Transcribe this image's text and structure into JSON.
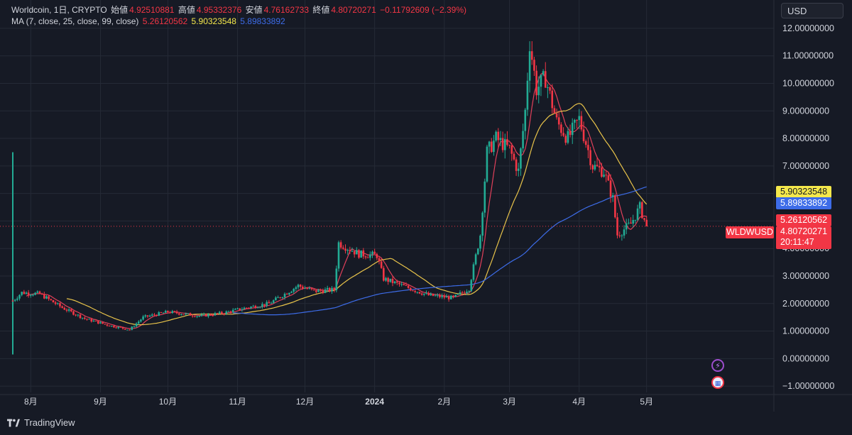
{
  "legend": {
    "symbol_line": "Worldcoin, 1日, CRYPTO",
    "open_label": "始値",
    "open_value": "4.92510881",
    "high_label": "高値",
    "high_value": "4.95332376",
    "low_label": "安値",
    "low_value": "4.76162733",
    "close_label": "終値",
    "close_value": "4.80720271",
    "change": "−0.11792609 (−2.39%)",
    "ma_label": "MA (7, close, 25, close, 99, close)",
    "ma7_value": "5.26120562",
    "ma25_value": "5.90323548",
    "ma99_value": "5.89833892"
  },
  "currency_button": "USD",
  "symbol_tag": "WLDWUSD",
  "price_tags": {
    "ma25": "5.90323548",
    "ma99": "5.89833892",
    "ma7": "5.26120562",
    "last": "4.80720271",
    "countdown": "20:11:47"
  },
  "brand": "TradingView",
  "colors": {
    "background": "#161a25",
    "up": "#22ab94",
    "down": "#f23645",
    "ma7": "#e0405a",
    "ma25": "#e8c34a",
    "ma99": "#3d6ce8",
    "grid": "#252a36"
  },
  "icons": [
    "lightning-event-icon",
    "us-flag-event-icon",
    "tradingview-logo-icon"
  ],
  "chart_data": {
    "type": "candlestick",
    "y_axis": {
      "ticks": [
        "−1.00000000",
        "0.00000000",
        "1.00000000",
        "2.00000000",
        "3.00000000",
        "4.00000000",
        "5.00000000",
        "6.00000000",
        "7.00000000",
        "8.00000000",
        "9.00000000",
        "10.00000000",
        "11.00000000",
        "12.00000000"
      ],
      "tick_values": [
        -1,
        0,
        1,
        2,
        3,
        4,
        5,
        6,
        7,
        8,
        9,
        10,
        11,
        12
      ],
      "range": [
        -1.1,
        12.9
      ]
    },
    "x_axis": {
      "tick_labels": [
        "8月",
        "9月",
        "10月",
        "11月",
        "12月",
        "2024",
        "2月",
        "3月",
        "4月",
        "5月"
      ],
      "tick_dates": [
        "2023-08-01",
        "2023-09-01",
        "2023-10-01",
        "2023-11-01",
        "2023-12-01",
        "2024-01-01",
        "2024-02-01",
        "2024-03-01",
        "2024-04-01",
        "2024-05-01"
      ],
      "bold_labels": [
        "2024"
      ],
      "range": [
        "2023-07-24",
        "2024-05-31"
      ]
    },
    "last_price": 4.80720271,
    "keypoints": [
      {
        "date": "2023-07-24",
        "close": 2.1
      },
      {
        "date": "2023-07-28",
        "close": 2.4
      },
      {
        "date": "2023-08-05",
        "close": 2.35
      },
      {
        "date": "2023-08-15",
        "close": 1.85
      },
      {
        "date": "2023-08-25",
        "close": 1.45
      },
      {
        "date": "2023-09-05",
        "close": 1.2
      },
      {
        "date": "2023-09-14",
        "close": 1.05
      },
      {
        "date": "2023-09-20",
        "close": 1.5
      },
      {
        "date": "2023-10-01",
        "close": 1.7
      },
      {
        "date": "2023-10-15",
        "close": 1.55
      },
      {
        "date": "2023-10-25",
        "close": 1.65
      },
      {
        "date": "2023-11-05",
        "close": 1.85
      },
      {
        "date": "2023-11-15",
        "close": 2.0
      },
      {
        "date": "2023-11-28",
        "close": 2.65
      },
      {
        "date": "2023-12-05",
        "close": 2.45
      },
      {
        "date": "2023-12-14",
        "close": 2.5
      },
      {
        "date": "2023-12-16",
        "close": 4.2
      },
      {
        "date": "2023-12-25",
        "close": 3.8
      },
      {
        "date": "2024-01-02",
        "close": 3.75
      },
      {
        "date": "2024-01-05",
        "close": 2.9
      },
      {
        "date": "2024-01-15",
        "close": 2.6
      },
      {
        "date": "2024-01-25",
        "close": 2.3
      },
      {
        "date": "2024-02-05",
        "close": 2.2
      },
      {
        "date": "2024-02-12",
        "close": 2.55
      },
      {
        "date": "2024-02-17",
        "close": 4.5
      },
      {
        "date": "2024-02-20",
        "close": 7.5
      },
      {
        "date": "2024-02-24",
        "close": 8.0
      },
      {
        "date": "2024-03-01",
        "close": 7.6
      },
      {
        "date": "2024-03-05",
        "close": 6.8
      },
      {
        "date": "2024-03-08",
        "close": 9.0
      },
      {
        "date": "2024-03-10",
        "close": 11.5
      },
      {
        "date": "2024-03-13",
        "close": 9.8
      },
      {
        "date": "2024-03-17",
        "close": 10.2
      },
      {
        "date": "2024-03-22",
        "close": 8.6
      },
      {
        "date": "2024-03-27",
        "close": 8.0
      },
      {
        "date": "2024-04-01",
        "close": 8.7
      },
      {
        "date": "2024-04-07",
        "close": 7.0
      },
      {
        "date": "2024-04-12",
        "close": 6.8
      },
      {
        "date": "2024-04-16",
        "close": 5.8
      },
      {
        "date": "2024-04-18",
        "close": 4.5
      },
      {
        "date": "2024-04-24",
        "close": 4.9
      },
      {
        "date": "2024-04-28",
        "close": 5.5
      },
      {
        "date": "2024-05-01",
        "close": 4.81
      }
    ],
    "spike": {
      "date": "2023-07-24",
      "high": 7.5,
      "low": 0.15
    },
    "moving_averages": [
      {
        "name": "MA 7",
        "period": 7,
        "last": 5.26120562
      },
      {
        "name": "MA 25",
        "period": 25,
        "last": 5.90323548
      },
      {
        "name": "MA 99",
        "period": 99,
        "last": 5.89833892
      }
    ]
  }
}
